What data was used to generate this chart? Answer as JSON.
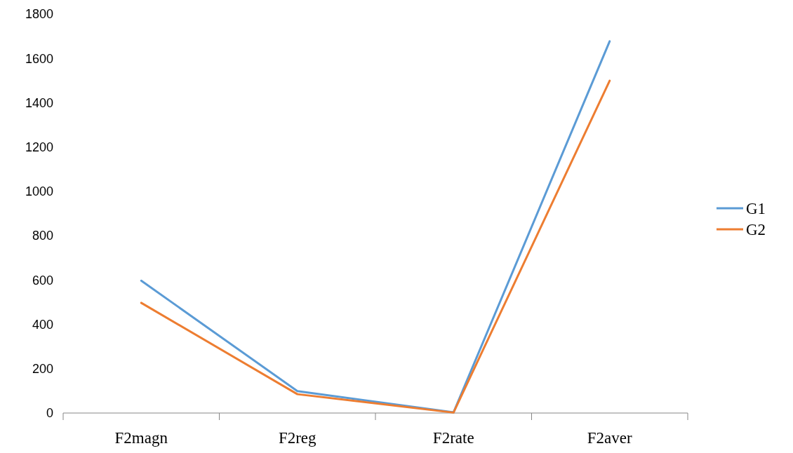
{
  "chart_data": {
    "type": "line",
    "categories": [
      "F2magn",
      "F2reg",
      "F2rate",
      "F2aver"
    ],
    "series": [
      {
        "name": "G1",
        "color": "#5b9bd5",
        "values": [
          597,
          99,
          3,
          1677
        ]
      },
      {
        "name": "G2",
        "color": "#ed7d31",
        "values": [
          497,
          85,
          2,
          1499
        ]
      }
    ],
    "ylim": [
      0,
      1800
    ],
    "yticks": [
      0,
      200,
      400,
      600,
      800,
      1000,
      1200,
      1400,
      1600,
      1800
    ],
    "grid": false,
    "legend": "right",
    "marker": "none",
    "line_style": "solid"
  }
}
